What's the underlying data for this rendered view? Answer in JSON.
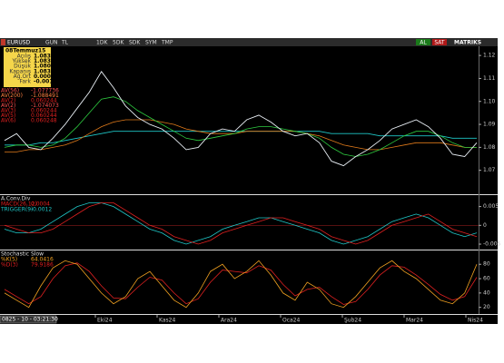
{
  "toolbar": {
    "symbol": "EURUSD",
    "buttons": [
      "GUN",
      "TL",
      "1DK",
      "5DK",
      "SDK",
      "SYM",
      "TMP"
    ],
    "buy": "AL",
    "sell": "SAT",
    "brand": "MATRIKS"
  },
  "info_box": {
    "date": "08Temmuz15",
    "rows": [
      [
        "Açılış",
        "1.0834"
      ],
      [
        "Yüksek",
        "1.0833"
      ],
      [
        "Düşük",
        "1.0805"
      ],
      [
        "Kapanış",
        "1.0835"
      ],
      [
        "Ağ.Ort",
        "0.0000"
      ],
      [
        "Fark",
        "-0.0015"
      ]
    ]
  },
  "panels": [
    {
      "legend": [
        [
          "AV(56)",
          "-1.077736"
        ],
        [
          "AV(200)",
          "-1.088491"
        ],
        [
          "AV(2)",
          "0.060244"
        ],
        [
          "AV(2)",
          "-1.074073"
        ],
        [
          "AV(3)",
          "0.060244"
        ],
        [
          "AV(5)",
          "0.060244"
        ],
        [
          "AV(6)",
          "0.060248"
        ]
      ],
      "ylim": [
        1.06,
        1.124
      ],
      "yticks": [
        1.07,
        1.08,
        1.09,
        {
          "value": 1.1,
          "label": "1.10"
        },
        1.11,
        1.12
      ],
      "series": [
        {
          "color": "#1fc8c8",
          "values": [
            1.081,
            1.081,
            1.081,
            1.082,
            1.082,
            1.083,
            1.084,
            1.085,
            1.086,
            1.087,
            1.087,
            1.087,
            1.087,
            1.087,
            1.087,
            1.087,
            1.087,
            1.087,
            1.087,
            1.087,
            1.087,
            1.087,
            1.087,
            1.087,
            1.087,
            1.087,
            1.087,
            1.086,
            1.086,
            1.086,
            1.086,
            1.085,
            1.085,
            1.085,
            1.085,
            1.085,
            1.085,
            1.084,
            1.084,
            1.084
          ]
        },
        {
          "color": "#e07a1a",
          "values": [
            1.078,
            1.078,
            1.079,
            1.079,
            1.08,
            1.081,
            1.083,
            1.086,
            1.089,
            1.091,
            1.092,
            1.092,
            1.092,
            1.091,
            1.09,
            1.088,
            1.087,
            1.086,
            1.086,
            1.086,
            1.087,
            1.087,
            1.087,
            1.087,
            1.087,
            1.086,
            1.085,
            1.083,
            1.081,
            1.08,
            1.079,
            1.079,
            1.08,
            1.081,
            1.082,
            1.082,
            1.082,
            1.081,
            1.08,
            1.08
          ]
        },
        {
          "color": "#2ecc40",
          "values": [
            1.08,
            1.081,
            1.081,
            1.08,
            1.081,
            1.084,
            1.089,
            1.095,
            1.101,
            1.102,
            1.1,
            1.096,
            1.093,
            1.09,
            1.087,
            1.084,
            1.083,
            1.084,
            1.085,
            1.086,
            1.088,
            1.089,
            1.089,
            1.088,
            1.087,
            1.086,
            1.084,
            1.08,
            1.077,
            1.076,
            1.077,
            1.079,
            1.082,
            1.085,
            1.087,
            1.087,
            1.085,
            1.082,
            1.08,
            1.08
          ]
        },
        {
          "color": "#e8eef4",
          "values": [
            1.083,
            1.086,
            1.08,
            1.079,
            1.084,
            1.09,
            1.097,
            1.104,
            1.113,
            1.106,
            1.098,
            1.093,
            1.09,
            1.088,
            1.084,
            1.079,
            1.08,
            1.086,
            1.088,
            1.087,
            1.092,
            1.094,
            1.091,
            1.087,
            1.085,
            1.086,
            1.082,
            1.074,
            1.072,
            1.076,
            1.079,
            1.083,
            1.088,
            1.09,
            1.092,
            1.089,
            1.084,
            1.077,
            1.076,
            1.082
          ]
        }
      ]
    },
    {
      "title": "A.Conv.Div",
      "legend": [
        [
          "MACD(26,12)",
          "0.0004"
        ],
        [
          "TRIGGER(9)",
          "-0.0012"
        ]
      ],
      "ylim": [
        -0.0062,
        0.0078
      ],
      "yticks": [
        -0.005,
        0,
        0.005
      ],
      "series": [
        {
          "color": "#1fc8c8",
          "values": [
            -0.001,
            -0.002,
            -0.002,
            -0.001,
            0.001,
            0.003,
            0.005,
            0.006,
            0.006,
            0.005,
            0.003,
            0.001,
            -0.001,
            -0.002,
            -0.004,
            -0.005,
            -0.004,
            -0.003,
            -0.001,
            0,
            0.001,
            0.002,
            0.002,
            0.001,
            0,
            -0.001,
            -0.002,
            -0.004,
            -0.005,
            -0.004,
            -0.003,
            -0.001,
            0.001,
            0.002,
            0.003,
            0.002,
            0,
            -0.002,
            -0.003,
            -0.002
          ]
        },
        {
          "color": "#e02020",
          "values": [
            0,
            -0.001,
            -0.002,
            -0.002,
            -0.001,
            0.001,
            0.003,
            0.005,
            0.006,
            0.006,
            0.004,
            0.002,
            0,
            -0.001,
            -0.003,
            -0.004,
            -0.005,
            -0.004,
            -0.002,
            -0.001,
            0,
            0.001,
            0.002,
            0.002,
            0.001,
            0,
            -0.001,
            -0.003,
            -0.004,
            -0.005,
            -0.004,
            -0.002,
            0,
            0.001,
            0.002,
            0.003,
            0.001,
            -0.001,
            -0.002,
            -0.003
          ]
        }
      ]
    },
    {
      "title": "Stochastic Slow",
      "legend": [
        [
          "%K(5)",
          "64.0416"
        ],
        [
          "%D(3)",
          "79.9186"
        ]
      ],
      "ylim": [
        12,
        98
      ],
      "yticks": [
        20,
        40,
        60,
        80
      ],
      "series": [
        {
          "color": "#e02020",
          "values": [
            45,
            35,
            25,
            35,
            60,
            78,
            82,
            70,
            50,
            33,
            32,
            48,
            62,
            58,
            40,
            25,
            32,
            55,
            72,
            70,
            68,
            78,
            72,
            52,
            36,
            45,
            48,
            35,
            24,
            28,
            45,
            65,
            78,
            76,
            65,
            52,
            38,
            30,
            35,
            62
          ]
        },
        {
          "color": "#f0a020",
          "values": [
            40,
            30,
            20,
            50,
            75,
            85,
            80,
            60,
            40,
            25,
            35,
            60,
            70,
            50,
            30,
            20,
            40,
            70,
            80,
            60,
            70,
            85,
            65,
            40,
            30,
            55,
            45,
            25,
            20,
            35,
            55,
            75,
            85,
            70,
            60,
            45,
            30,
            25,
            40,
            80
          ]
        }
      ]
    }
  ],
  "time_axis": {
    "cursor": "0825 - 10 - 03:21:30",
    "labels": [
      "Eki24",
      "Kas24",
      "Ara24",
      "Oca24",
      "Şub24",
      "Mar24",
      "Nis24"
    ]
  }
}
